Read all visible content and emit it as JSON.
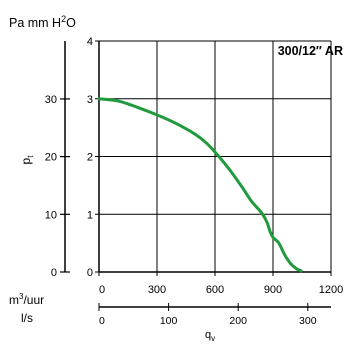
{
  "chart_data": {
    "type": "line",
    "title": "300/12″ AR",
    "x_axis": {
      "label": "q",
      "label_subscript": "v",
      "unit_primary": "m3/uur",
      "unit_primary_main": "m",
      "unit_primary_sup": "3",
      "unit_primary_tail": "/uur",
      "range": [
        0,
        1200
      ],
      "ticks": [
        0,
        300,
        600,
        900,
        1200
      ],
      "unit_secondary": "l/s",
      "secondary_ticks": [
        0,
        100,
        200,
        300
      ]
    },
    "y_axis": {
      "label": "p",
      "label_subscript": "t",
      "range": [
        0,
        4
      ],
      "ticks": [
        0,
        1,
        2,
        3,
        4
      ],
      "unit_secondary": "Pa mm H2O",
      "unit_secondary_main": "Pa mm H",
      "unit_secondary_sup": "2",
      "unit_secondary_tail": "O",
      "secondary_ticks": [
        0,
        10,
        20,
        30
      ]
    },
    "grid": true,
    "series_color": "#1f9a3c",
    "series": [
      {
        "x": [
          0,
          100,
          200,
          300,
          400,
          500,
          560,
          620,
          680,
          740,
          790,
          840,
          870,
          885,
          900,
          930,
          960,
          990,
          1020,
          1045
        ],
        "y": [
          3.0,
          2.96,
          2.85,
          2.72,
          2.57,
          2.38,
          2.22,
          2.0,
          1.75,
          1.47,
          1.22,
          1.03,
          0.85,
          0.7,
          0.6,
          0.5,
          0.3,
          0.15,
          0.06,
          0.02
        ]
      }
    ]
  }
}
